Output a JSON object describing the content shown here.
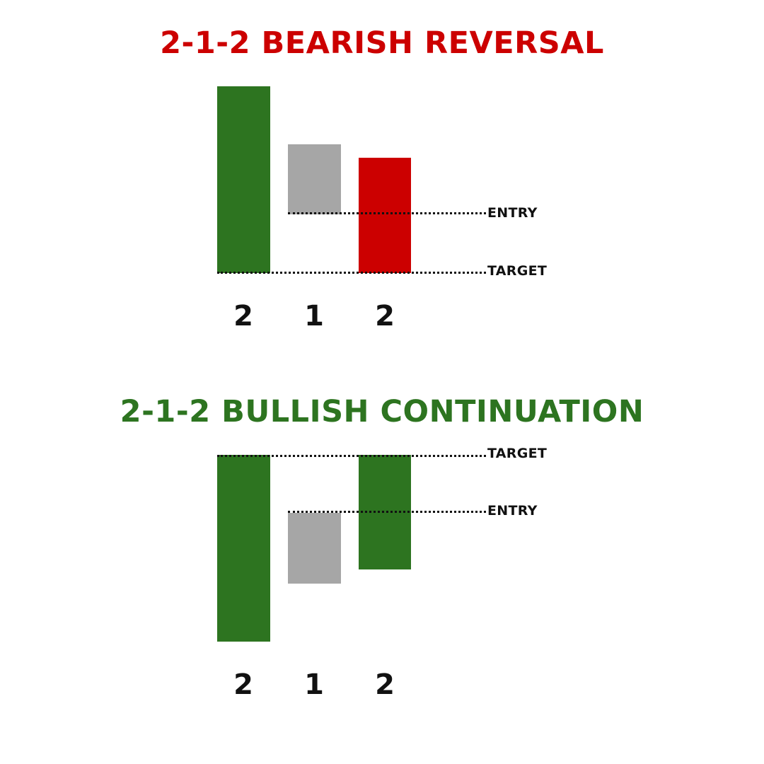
{
  "colors": {
    "bearish_title": "#cc0000",
    "bullish_title": "#2d7420",
    "green": "#2d7420",
    "gray": "#a6a6a6",
    "red": "#cc0000"
  },
  "bearish": {
    "title": "2-1-2 BEARISH REVERSAL",
    "entry_label": "ENTRY",
    "target_label": "TARGET",
    "candles": [
      {
        "number": "2",
        "color": "green"
      },
      {
        "number": "1",
        "color": "gray"
      },
      {
        "number": "2",
        "color": "red"
      }
    ]
  },
  "bullish": {
    "title": "2-1-2 BULLISH CONTINUATION",
    "entry_label": "ENTRY",
    "target_label": "TARGET",
    "candles": [
      {
        "number": "2",
        "color": "green"
      },
      {
        "number": "1",
        "color": "gray"
      },
      {
        "number": "2",
        "color": "green"
      }
    ]
  }
}
